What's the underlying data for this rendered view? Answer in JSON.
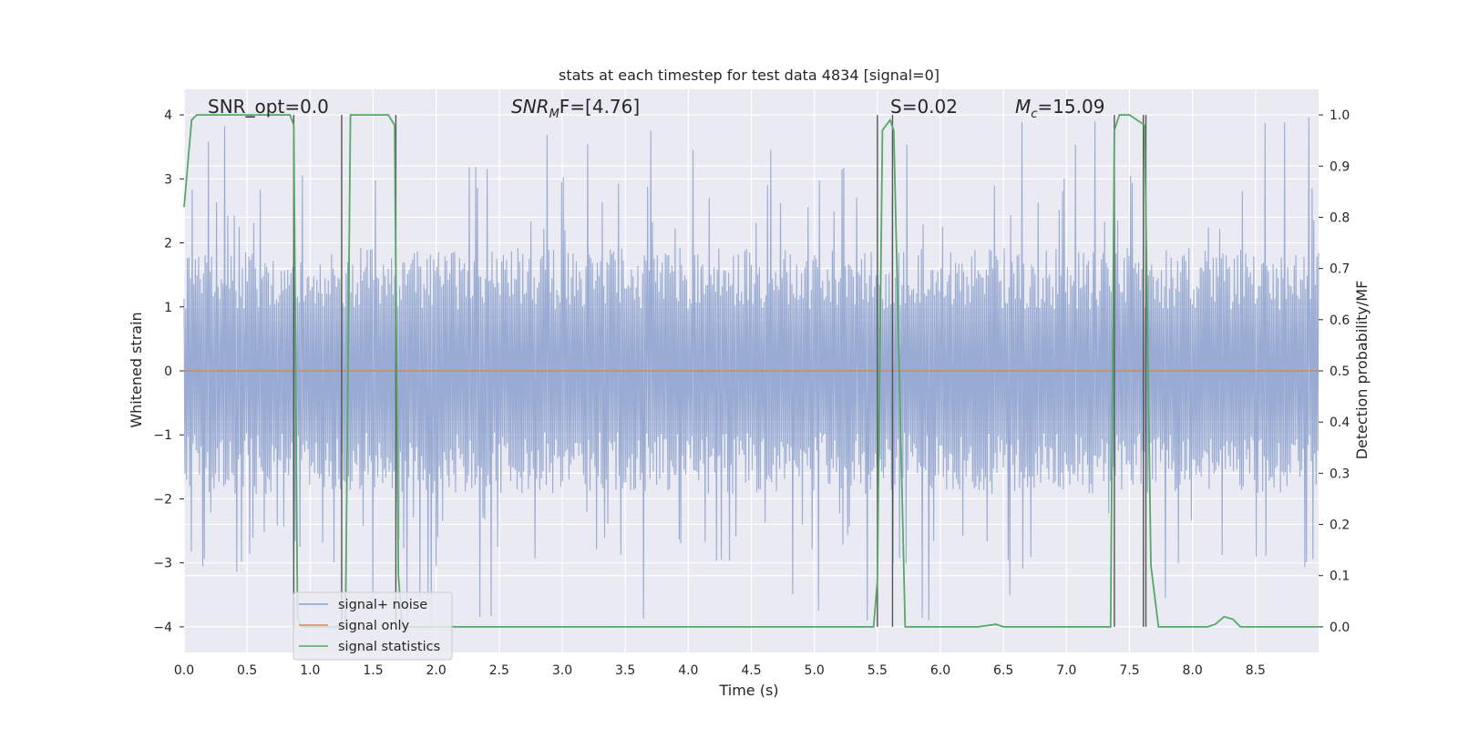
{
  "chart_data": {
    "type": "line",
    "title": "stats at each timestep for test data 4834 [signal=0]",
    "xlabel": "Time (s)",
    "ylabel": "Whitened strain",
    "ylabel_right": "Detection probability/MF",
    "xlim": [
      0,
      9.0
    ],
    "ylim": [
      -4.4,
      4.4
    ],
    "ylim_right": [
      -0.05,
      1.05
    ],
    "xticks": [
      0.0,
      0.5,
      1.0,
      1.5,
      2.0,
      2.5,
      3.0,
      3.5,
      4.0,
      4.5,
      5.0,
      5.5,
      6.0,
      6.5,
      7.0,
      7.5,
      8.0,
      8.5
    ],
    "xtick_labels": [
      "0.0",
      "0.5",
      "1.0",
      "1.5",
      "2.0",
      "2.5",
      "3.0",
      "3.5",
      "4.0",
      "4.5",
      "5.0",
      "5.5",
      "6.0",
      "6.5",
      "7.0",
      "7.5",
      "8.0",
      "8.5"
    ],
    "yticks": [
      4,
      3,
      2,
      1,
      0,
      -1,
      -2,
      -3,
      -4
    ],
    "ytick_labels": [
      "4",
      "3",
      "2",
      "1",
      "0",
      "−1",
      "−2",
      "−3",
      "−4"
    ],
    "yticks_right": [
      1.0,
      0.9,
      0.8,
      0.7,
      0.6,
      0.5,
      0.4,
      0.3,
      0.2,
      0.1,
      0.0
    ],
    "ytick_labels_right": [
      "1.0",
      "0.9",
      "0.8",
      "0.7",
      "0.6",
      "0.5",
      "0.4",
      "0.3",
      "0.2",
      "0.1",
      "0.0"
    ],
    "grid": true,
    "legend_position": "lower-left",
    "annotations": {
      "snr_opt": "SNR_opt=0.0",
      "snr_mf_main": "SNR",
      "snr_mf_sub": "M",
      "snr_mf_rest": "F=[4.76]",
      "s_stat": "S=0.02",
      "mc_main": "M",
      "mc_sub": "c",
      "mc_rest": "=15.09"
    },
    "series": [
      {
        "name": "signal+ noise",
        "color": "#8ba0cd",
        "noise_envelope": {
          "typical_abs": 1.6,
          "peak_abs": 4.0,
          "min": -3.9
        }
      },
      {
        "name": "signal only",
        "color": "#dd8452",
        "values_constant": 0
      },
      {
        "name": "signal statistics",
        "color": "#55a868",
        "axis": "right",
        "x": [
          0.0,
          0.06,
          0.1,
          0.84,
          0.87,
          0.9,
          0.93,
          1.25,
          1.28,
          1.32,
          1.62,
          1.67,
          1.7,
          1.73,
          5.43,
          5.47,
          5.5,
          5.54,
          5.6,
          5.63,
          5.72,
          5.78,
          6.3,
          6.44,
          6.5,
          7.35,
          7.38,
          7.42,
          7.5,
          7.56,
          7.62,
          7.67,
          7.73,
          8.12,
          8.18,
          8.25,
          8.32,
          8.38,
          9.0
        ],
        "y": [
          0.82,
          0.99,
          1.0,
          1.0,
          0.98,
          0.02,
          0.0,
          0.0,
          0.0,
          1.0,
          1.0,
          0.98,
          0.1,
          0.0,
          0.0,
          0.0,
          0.09,
          0.97,
          0.99,
          0.97,
          0.0,
          0.0,
          0.0,
          0.005,
          0.0,
          0.0,
          0.97,
          1.0,
          1.0,
          0.99,
          0.98,
          0.12,
          0.0,
          0.0,
          0.005,
          0.02,
          0.015,
          0.0,
          0.0
        ]
      }
    ],
    "vertical_markers": [
      0.87,
      1.25,
      1.68,
      5.5,
      5.62,
      7.38,
      7.61,
      7.63
    ]
  }
}
